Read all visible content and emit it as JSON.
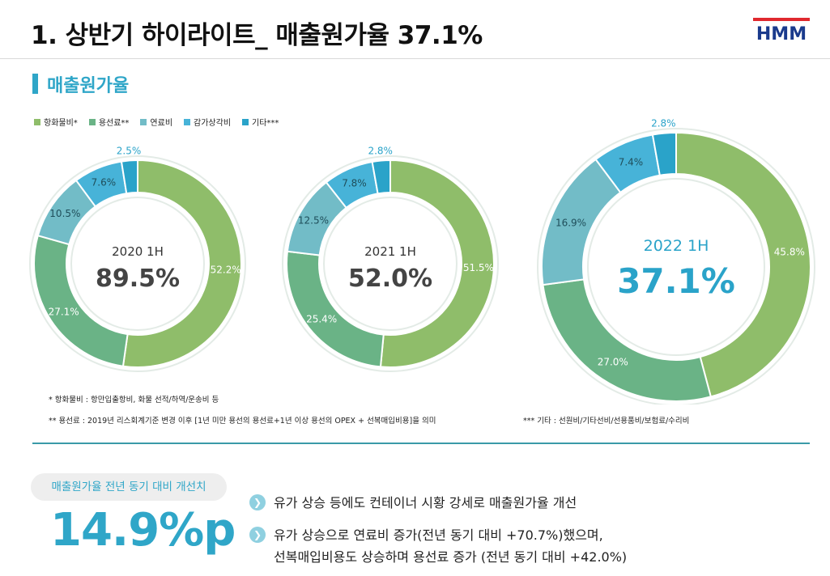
{
  "header": {
    "title": "1. 상반기 하이라이트_ 매출원가율 37.1%",
    "logo_text": "HMM"
  },
  "section": {
    "title": "매출원가율"
  },
  "legend": [
    {
      "label": "항화물비*",
      "color": "#8fbd6a"
    },
    {
      "label": "용선료**",
      "color": "#6ab386"
    },
    {
      "label": "연료비",
      "color": "#72bcc7"
    },
    {
      "label": "감가상각비",
      "color": "#47b3d8"
    },
    {
      "label": "기타***",
      "color": "#2aa3c9"
    }
  ],
  "chart_data": [
    {
      "type": "pie",
      "period": "2020 1H",
      "ratio": "89.5%",
      "categories": [
        "항화물비*",
        "용선료**",
        "연료비",
        "감가상각비",
        "기타***"
      ],
      "values": [
        52.2,
        27.1,
        10.5,
        7.6,
        2.5
      ],
      "labels": [
        "52.2%",
        "27.1%",
        "10.5%",
        "7.6%",
        "2.5%"
      ]
    },
    {
      "type": "pie",
      "period": "2021 1H",
      "ratio": "52.0%",
      "categories": [
        "항화물비*",
        "용선료**",
        "연료비",
        "감가상각비",
        "기타***"
      ],
      "values": [
        51.5,
        25.4,
        12.5,
        7.8,
        2.8
      ],
      "labels": [
        "51.5%",
        "25.4%",
        "12.5%",
        "7.8%",
        "2.8%"
      ]
    },
    {
      "type": "pie",
      "period": "2022 1H",
      "ratio": "37.1%",
      "categories": [
        "항화물비*",
        "용선료**",
        "연료비",
        "감가상각비",
        "기타***"
      ],
      "values": [
        45.8,
        27.0,
        16.9,
        7.4,
        2.8
      ],
      "labels": [
        "45.8%",
        "27.0%",
        "16.9%",
        "7.4%",
        "2.8%"
      ]
    }
  ],
  "notes": {
    "note1": "* 항화물비 : 항만입출항비, 화물 선적/하역/운송비 등",
    "note2": "** 용선료 : 2019년 리스회계기준 변경 이후 [1년 미만 용선의 용선료+1년 이상 용선의 OPEX + 선복매입비용]을 의미",
    "note3": "*** 기타 : 선원비/기타선비/선용품비/보험료/수리비"
  },
  "summary": {
    "pill_label": "매출원가율 전년 동기 대비 개선치",
    "value": "14.9%p",
    "bullets": [
      {
        "lines": [
          "유가 상승 등에도 컨테이너 시황 강세로 매출원가율 개선"
        ]
      },
      {
        "lines": [
          "유가 상승으로 연료비 증가(전년 동기 대비 +70.7%)했으며,",
          "선복매입비용도 상승하며 용선료 증가 (전년 동기 대비 +42.0%)"
        ]
      }
    ]
  }
}
